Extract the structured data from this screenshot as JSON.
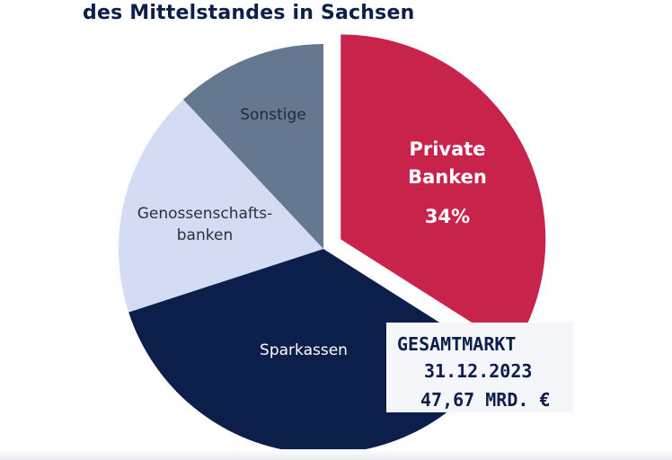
{
  "title": "des Mittelstandes in Sachsen",
  "chart_data": {
    "type": "pie",
    "slices": [
      {
        "key": "private",
        "lines": [
          "Private",
          "Banken"
        ],
        "value": 34,
        "value_label": "34%",
        "color": "#c8234a",
        "text_color": "#ffffff",
        "exploded": true
      },
      {
        "key": "sparkassen",
        "lines": [
          "Sparkassen"
        ],
        "value": 36,
        "value_label": "",
        "color": "#0c1f4a",
        "text_color": "#ffffff",
        "exploded": false
      },
      {
        "key": "genossenschaft",
        "lines": [
          "Genossenschafts-",
          "banken"
        ],
        "value": 18,
        "value_label": "",
        "color": "#d3dcf3",
        "text_color": "#2a2f3a",
        "exploded": false
      },
      {
        "key": "sonstige",
        "lines": [
          "Sonstige"
        ],
        "value": 12,
        "value_label": "",
        "color": "#657890",
        "text_color": "#1f2a38",
        "exploded": false
      }
    ]
  },
  "summary_box": {
    "line1": "GESAMTMARKT",
    "line2": "31.12.2023",
    "line3": "47,67 MRD. €"
  }
}
